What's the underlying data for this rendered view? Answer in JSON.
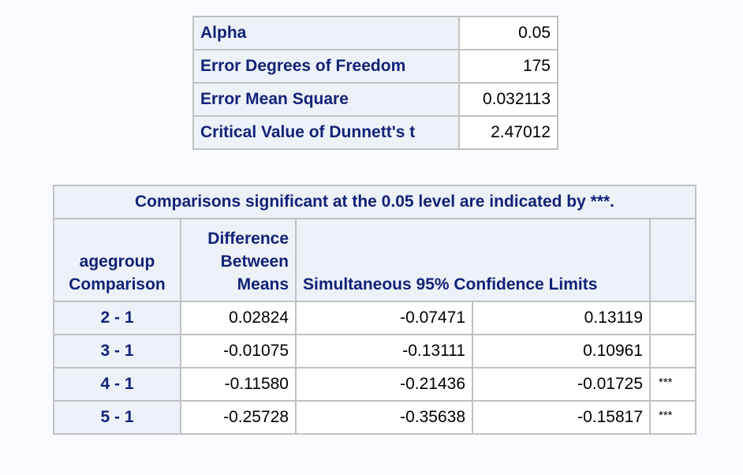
{
  "params_table": {
    "rows": [
      {
        "label": "Alpha",
        "value": "0.05"
      },
      {
        "label": "Error Degrees of Freedom",
        "value": "175"
      },
      {
        "label": "Error Mean Square",
        "value": "0.032113"
      },
      {
        "label": "Critical Value of Dunnett's t",
        "value": "2.47012"
      }
    ]
  },
  "comparison_table": {
    "caption": "Comparisons significant at the 0.05 level are indicated by ***.",
    "headers": {
      "comparison": [
        "agegroup",
        "Comparison"
      ],
      "difference": [
        "Difference",
        "Between",
        "Means"
      ],
      "limits": "Simultaneous 95% Confidence Limits"
    },
    "rows": [
      {
        "comparison": "2 - 1",
        "difference": "0.02824",
        "lower": "-0.07471",
        "upper": "0.13119",
        "flag": ""
      },
      {
        "comparison": "3 - 1",
        "difference": "-0.01075",
        "lower": "-0.13111",
        "upper": "0.10961",
        "flag": ""
      },
      {
        "comparison": "4 - 1",
        "difference": "-0.11580",
        "lower": "-0.21436",
        "upper": "-0.01725",
        "flag": "***"
      },
      {
        "comparison": "5 - 1",
        "difference": "-0.25728",
        "lower": "-0.35638",
        "upper": "-0.15817",
        "flag": "***"
      }
    ]
  }
}
